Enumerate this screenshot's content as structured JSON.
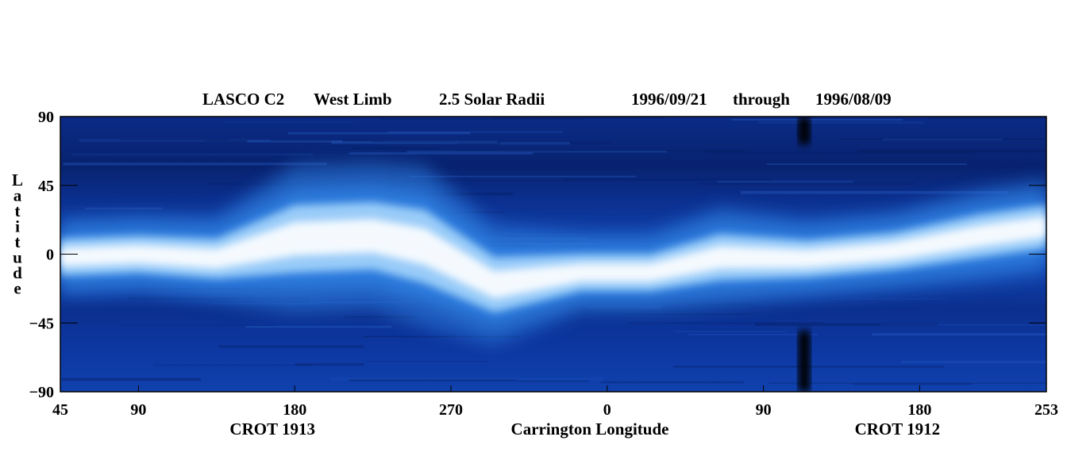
{
  "chart_data": {
    "type": "heatmap",
    "title": {
      "instrument": "LASCO C2",
      "limb": "West Limb",
      "height": "2.5 Solar Radii",
      "start_date": "1996/09/21",
      "through": "through",
      "end_date": "1996/08/09"
    },
    "xlabel": "Carrington Longitude",
    "ylabel": "Latitude",
    "ylim": [
      -90,
      90
    ],
    "y_ticks": [
      {
        "value": 90,
        "label": "90"
      },
      {
        "value": 45,
        "label": "45"
      },
      {
        "value": 0,
        "label": "0"
      },
      {
        "value": -45,
        "label": "−45"
      },
      {
        "value": -90,
        "label": "−90"
      }
    ],
    "x_ticks": [
      {
        "pos": 0,
        "label": "45"
      },
      {
        "pos": 45,
        "label": "90"
      },
      {
        "pos": 135,
        "label": "180"
      },
      {
        "pos": 225,
        "label": "270"
      },
      {
        "pos": 315,
        "label": "0"
      },
      {
        "pos": 405,
        "label": "90"
      },
      {
        "pos": 495,
        "label": "180"
      },
      {
        "pos": 568,
        "label": "253"
      }
    ],
    "rotations": [
      {
        "label": "CROT 1913",
        "pos": 135
      },
      {
        "label": "CROT 1912",
        "pos": 495
      }
    ],
    "colormap": [
      "#061a5c",
      "#0a3fa8",
      "#2f7fe0",
      "#9fd0fa",
      "#ffffff"
    ],
    "streamer_belt": {
      "description_source": "bright band traced along sequential longitude",
      "points": [
        {
          "pos": 0,
          "lat_center": -2,
          "lat_half_width": 12
        },
        {
          "pos": 45,
          "lat_center": 0,
          "lat_half_width": 12
        },
        {
          "pos": 90,
          "lat_center": -3,
          "lat_half_width": 13
        },
        {
          "pos": 135,
          "lat_center": 10,
          "lat_half_width": 22
        },
        {
          "pos": 180,
          "lat_center": 12,
          "lat_half_width": 22
        },
        {
          "pos": 210,
          "lat_center": 5,
          "lat_half_width": 24
        },
        {
          "pos": 250,
          "lat_center": -20,
          "lat_half_width": 18
        },
        {
          "pos": 300,
          "lat_center": -12,
          "lat_half_width": 12
        },
        {
          "pos": 340,
          "lat_center": -12,
          "lat_half_width": 12
        },
        {
          "pos": 380,
          "lat_center": -2,
          "lat_half_width": 15
        },
        {
          "pos": 430,
          "lat_center": -3,
          "lat_half_width": 12
        },
        {
          "pos": 480,
          "lat_center": 2,
          "lat_half_width": 12
        },
        {
          "pos": 530,
          "lat_center": 12,
          "lat_half_width": 14
        },
        {
          "pos": 568,
          "lat_center": 18,
          "lat_half_width": 14
        }
      ]
    },
    "data_gaps": [
      {
        "pos_start": 425,
        "pos_end": 432,
        "lat_min": 72,
        "lat_max": 90
      },
      {
        "pos_start": 425,
        "pos_end": 432,
        "lat_min": -90,
        "lat_max": -50
      }
    ],
    "x_range": [
      0,
      568
    ]
  }
}
